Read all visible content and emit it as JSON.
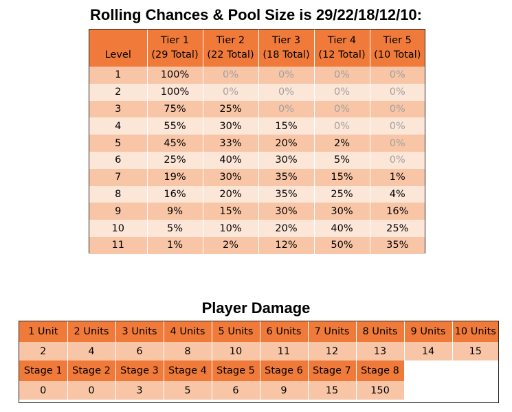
{
  "rolling_title": "Rolling Chances & Pool Size is 29/22/18/12/10:",
  "rolling_table": {
    "level_header": "Level",
    "tiers": [
      {
        "name": "Tier 1",
        "total": "(29 Total)"
      },
      {
        "name": "Tier 2",
        "total": "(22 Total)"
      },
      {
        "name": "Tier 3",
        "total": "(18 Total)"
      },
      {
        "name": "Tier 4",
        "total": "(12 Total)"
      },
      {
        "name": "Tier 5",
        "total": "(10 Total)"
      }
    ],
    "rows": [
      {
        "level": "1",
        "values": [
          "100%",
          "0%",
          "0%",
          "0%",
          "0%"
        ]
      },
      {
        "level": "2",
        "values": [
          "100%",
          "0%",
          "0%",
          "0%",
          "0%"
        ]
      },
      {
        "level": "3",
        "values": [
          "75%",
          "25%",
          "0%",
          "0%",
          "0%"
        ]
      },
      {
        "level": "4",
        "values": [
          "55%",
          "30%",
          "15%",
          "0%",
          "0%"
        ]
      },
      {
        "level": "5",
        "values": [
          "45%",
          "33%",
          "20%",
          "2%",
          "0%"
        ]
      },
      {
        "level": "6",
        "values": [
          "25%",
          "40%",
          "30%",
          "5%",
          "0%"
        ]
      },
      {
        "level": "7",
        "values": [
          "19%",
          "30%",
          "35%",
          "15%",
          "1%"
        ]
      },
      {
        "level": "8",
        "values": [
          "16%",
          "20%",
          "35%",
          "25%",
          "4%"
        ]
      },
      {
        "level": "9",
        "values": [
          "9%",
          "15%",
          "30%",
          "30%",
          "16%"
        ]
      },
      {
        "level": "10",
        "values": [
          "5%",
          "10%",
          "20%",
          "40%",
          "25%"
        ]
      },
      {
        "level": "11",
        "values": [
          "1%",
          "2%",
          "12%",
          "50%",
          "35%"
        ]
      }
    ]
  },
  "damage_title": "Player Damage",
  "damage_table": {
    "units": [
      {
        "label": "1 Unit",
        "value": "2"
      },
      {
        "label": "2 Units",
        "value": "4"
      },
      {
        "label": "3 Units",
        "value": "6"
      },
      {
        "label": "4 Units",
        "value": "8"
      },
      {
        "label": "5 Units",
        "value": "10"
      },
      {
        "label": "6 Units",
        "value": "11"
      },
      {
        "label": "7 Units",
        "value": "12"
      },
      {
        "label": "8 Units",
        "value": "13"
      },
      {
        "label": "9 Units",
        "value": "14"
      },
      {
        "label": "10 Units",
        "value": "15"
      }
    ],
    "stages": [
      {
        "label": "Stage 1",
        "value": "0"
      },
      {
        "label": "Stage 2",
        "value": "0"
      },
      {
        "label": "Stage 3",
        "value": "3"
      },
      {
        "label": "Stage 4",
        "value": "5"
      },
      {
        "label": "Stage 5",
        "value": "6"
      },
      {
        "label": "Stage 6",
        "value": "9"
      },
      {
        "label": "Stage 7",
        "value": "15"
      },
      {
        "label": "Stage 8",
        "value": "150"
      }
    ]
  },
  "colors": {
    "header_orange": "#f07a3a",
    "row_dark": "#f8c6a6",
    "row_light": "#fce6d8",
    "zero_text": "#a0a0a0"
  }
}
